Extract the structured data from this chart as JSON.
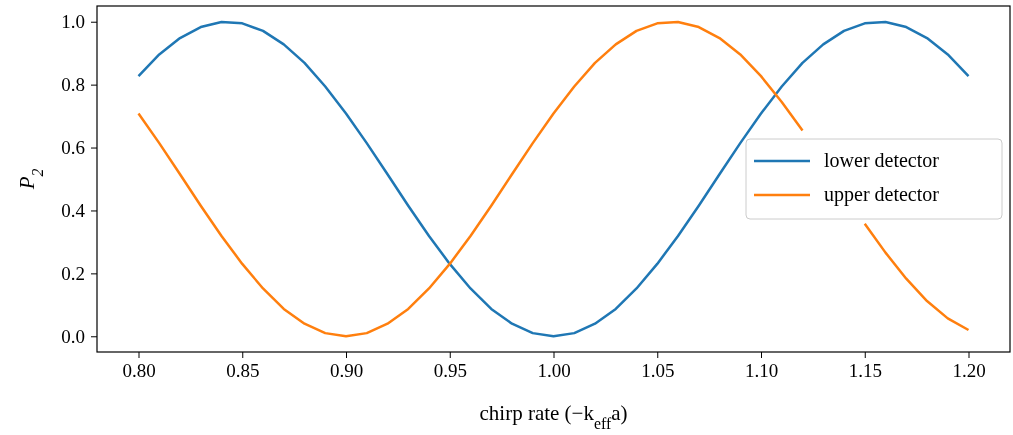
{
  "chart_data": {
    "type": "line",
    "xlabel": "chirp rate (−k$_{eff}$a)",
    "ylabel": "P$_{2}$",
    "x": [
      0.8,
      0.81,
      0.82,
      0.83,
      0.84,
      0.85,
      0.86,
      0.87,
      0.88,
      0.89,
      0.9,
      0.91,
      0.92,
      0.93,
      0.94,
      0.95,
      0.96,
      0.97,
      0.98,
      0.99,
      1.0,
      1.01,
      1.02,
      1.03,
      1.04,
      1.05,
      1.06,
      1.07,
      1.08,
      1.09,
      1.1,
      1.11,
      1.12,
      1.13,
      1.14,
      1.15,
      1.16,
      1.17,
      1.18,
      1.19,
      1.2
    ],
    "series": [
      {
        "name": "lower detector",
        "color": "#1f77b4",
        "values": [
          0.827,
          0.896,
          0.948,
          0.983,
          0.999,
          0.995,
          0.971,
          0.928,
          0.869,
          0.794,
          0.708,
          0.614,
          0.515,
          0.415,
          0.319,
          0.23,
          0.152,
          0.087,
          0.04,
          0.01,
          0,
          0.01,
          0.04,
          0.087,
          0.152,
          0.23,
          0.319,
          0.415,
          0.515,
          0.614,
          0.708,
          0.794,
          0.869,
          0.928,
          0.971,
          0.995,
          0.999,
          0.983,
          0.948,
          0.896,
          0.827
        ]
      },
      {
        "name": "upper detector",
        "color": "#ff7f0e",
        "values": [
          0.708,
          0.614,
          0.515,
          0.415,
          0.319,
          0.23,
          0.152,
          0.087,
          0.04,
          0.01,
          0,
          0.01,
          0.04,
          0.087,
          0.152,
          0.23,
          0.319,
          0.415,
          0.515,
          0.614,
          0.708,
          0.794,
          0.869,
          0.928,
          0.971,
          0.995,
          0.999,
          0.983,
          0.948,
          0.896,
          0.827,
          0.745,
          0.654,
          null,
          null,
          0.358,
          0.266,
          0.183,
          0.112,
          0.057,
          0.02
        ]
      }
    ],
    "xlim": [
      0.78,
      1.22
    ],
    "xticks": [
      {
        "value": 0.8,
        "label": "0.80"
      },
      {
        "value": 0.85,
        "label": "0.85"
      },
      {
        "value": 0.9,
        "label": "0.90"
      },
      {
        "value": 0.95,
        "label": "0.95"
      },
      {
        "value": 1.0,
        "label": "1.00"
      },
      {
        "value": 1.05,
        "label": "1.05"
      },
      {
        "value": 1.1,
        "label": "1.10"
      },
      {
        "value": 1.15,
        "label": "1.15"
      },
      {
        "value": 1.2,
        "label": "1.20"
      }
    ],
    "ylim": [
      -0.05,
      1.05
    ],
    "yticks": [
      {
        "value": 0,
        "label": "0.0"
      },
      {
        "value": 0.2,
        "label": "0.2"
      },
      {
        "value": 0.4,
        "label": "0.4"
      },
      {
        "value": 0.6,
        "label": "0.6"
      },
      {
        "value": 0.8,
        "label": "0.8"
      },
      {
        "value": 1.0,
        "label": "1.0"
      }
    ],
    "grid": false,
    "legend": "right",
    "marker": "none",
    "line_style": "solid"
  }
}
